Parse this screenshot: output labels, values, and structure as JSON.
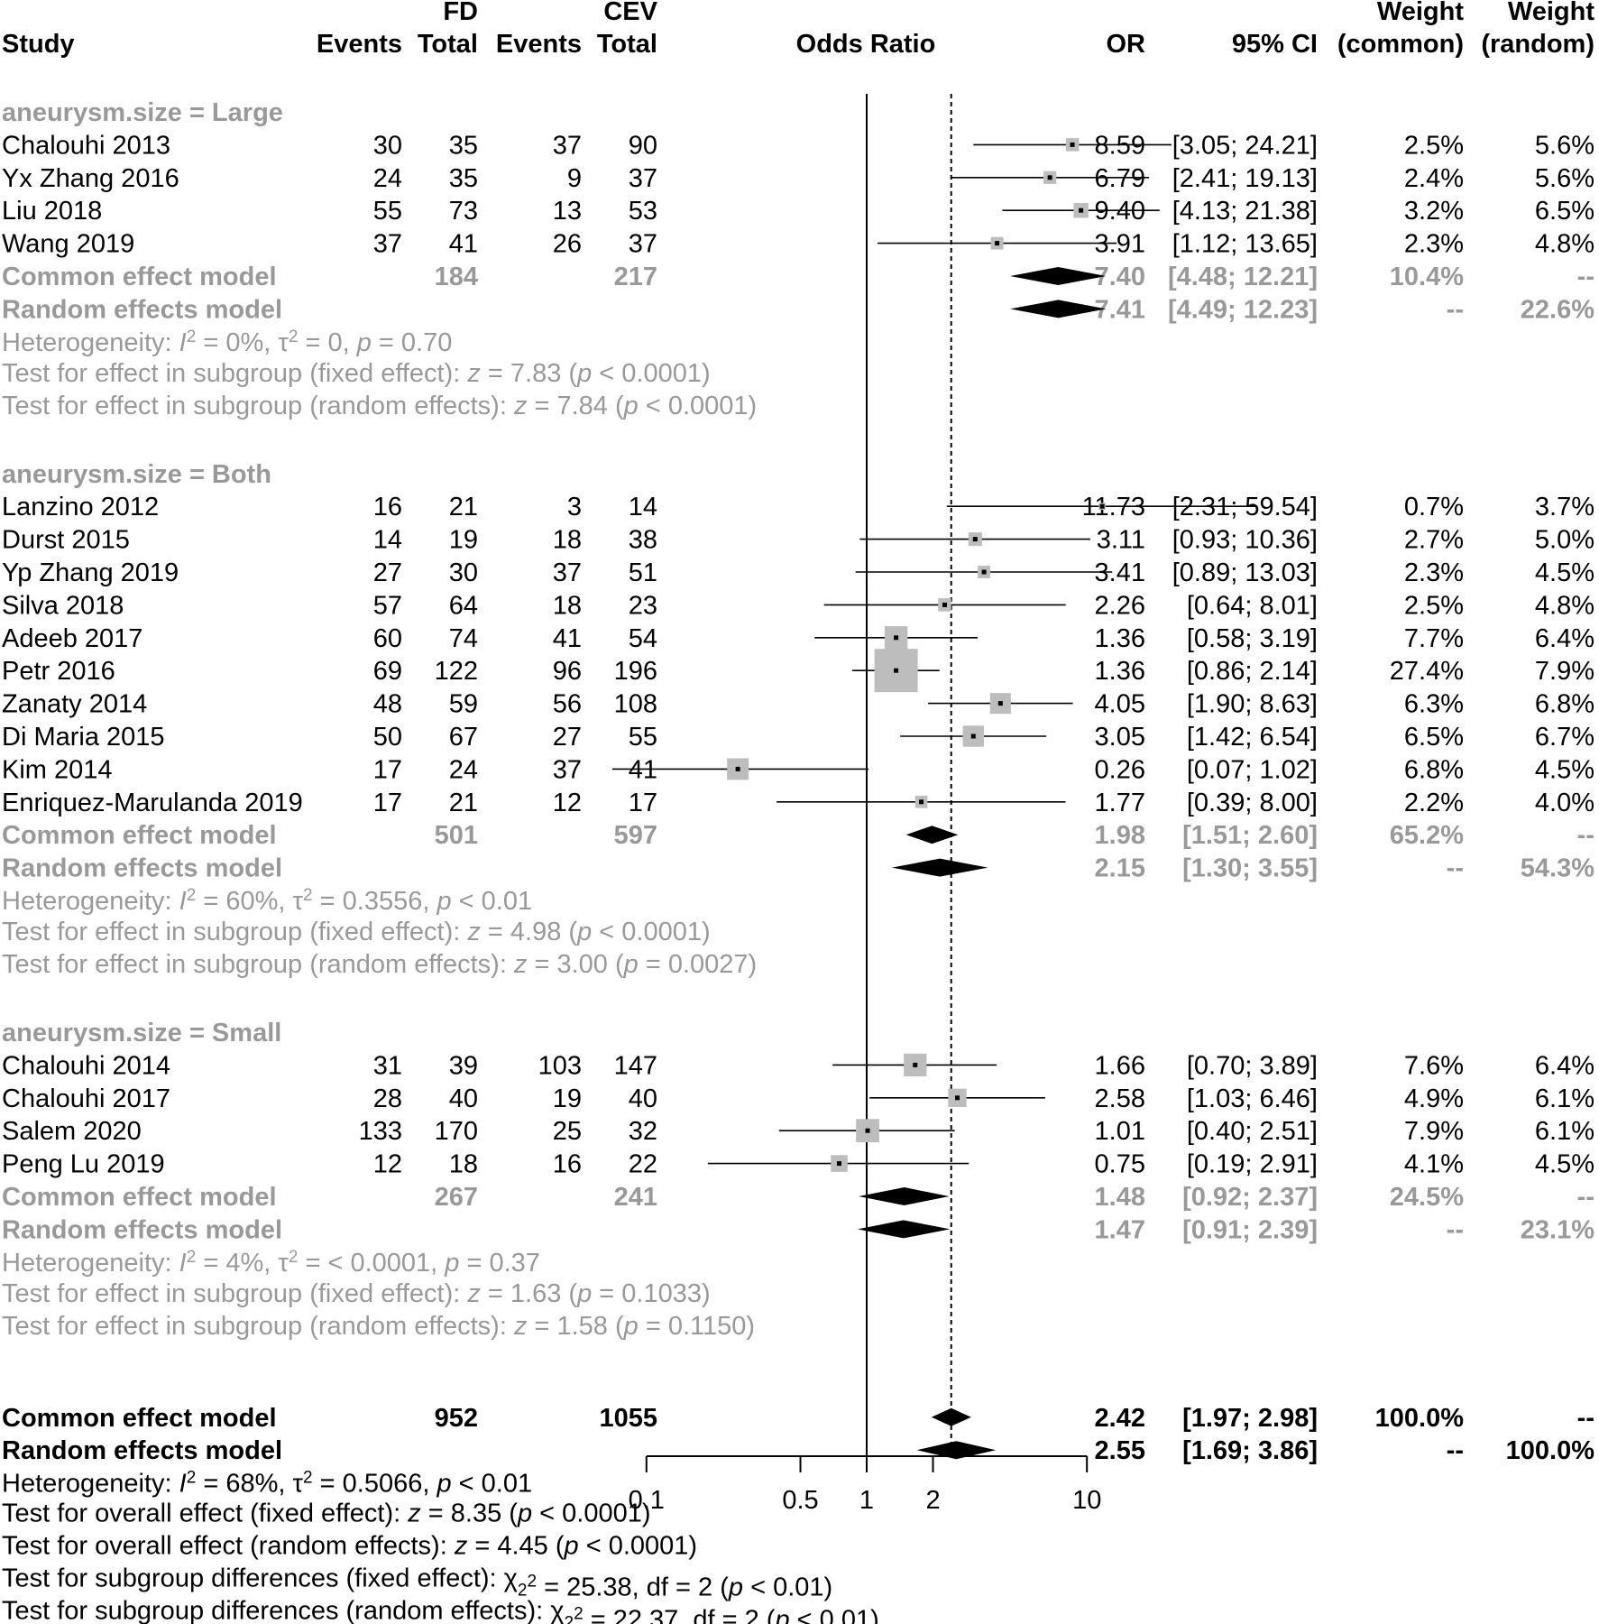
{
  "chart_data": {
    "type": "forest",
    "scale": "log",
    "effect_measure": "Odds Ratio",
    "null_value": 1,
    "x_ticks": [
      0.1,
      0.5,
      1,
      2,
      10
    ],
    "x_tick_labels": [
      "0.1",
      "0.5",
      "1",
      "2",
      "10"
    ],
    "overall_reference": 2.42,
    "header": {
      "group1": "FD",
      "group2": "CEV",
      "study": "Study",
      "events": "Events",
      "total": "Total",
      "plot": "Odds Ratio",
      "or": "OR",
      "ci": "95% CI",
      "weight": "Weight",
      "common": "(common)",
      "random": "(random)"
    },
    "subgroups": [
      {
        "label": "aneurysm.size = Large",
        "studies": [
          {
            "study": "Chalouhi 2013",
            "e1": "30",
            "n1": "35",
            "e2": "37",
            "n2": "90",
            "or": 8.59,
            "lo": 3.05,
            "hi": 24.21,
            "or_text": "8.59",
            "ci_text": "[3.05; 24.21]",
            "w_common": "2.5%",
            "w_random": "5.6%"
          },
          {
            "study": "Yx Zhang 2016",
            "e1": "24",
            "n1": "35",
            "e2": "9",
            "n2": "37",
            "or": 6.79,
            "lo": 2.41,
            "hi": 19.13,
            "or_text": "6.79",
            "ci_text": "[2.41; 19.13]",
            "w_common": "2.4%",
            "w_random": "5.6%"
          },
          {
            "study": "Liu 2018",
            "e1": "55",
            "n1": "73",
            "e2": "13",
            "n2": "53",
            "or": 9.4,
            "lo": 4.13,
            "hi": 21.38,
            "or_text": "9.40",
            "ci_text": "[4.13; 21.38]",
            "w_common": "3.2%",
            "w_random": "6.5%"
          },
          {
            "study": "Wang 2019",
            "e1": "37",
            "n1": "41",
            "e2": "26",
            "n2": "37",
            "or": 3.91,
            "lo": 1.12,
            "hi": 13.65,
            "or_text": "3.91",
            "ci_text": "[1.12; 13.65]",
            "w_common": "2.3%",
            "w_random": "4.8%"
          }
        ],
        "common": {
          "label": "Common effect model",
          "n1": "184",
          "n2": "217",
          "or": 7.4,
          "lo": 4.48,
          "hi": 12.21,
          "or_text": "7.40",
          "ci_text": "[4.48; 12.21]",
          "w_common": "10.4%",
          "w_random": "--"
        },
        "random": {
          "label": "Random effects model",
          "or": 7.41,
          "lo": 4.49,
          "hi": 12.23,
          "or_text": "7.41",
          "ci_text": "[4.49; 12.23]",
          "w_common": "--",
          "w_random": "22.6%"
        },
        "het": {
          "pre": "Heterogeneity: ",
          "i2": "0%",
          "tau2": "0",
          "p": "0.70"
        },
        "tests": [
          {
            "pre": "Test for effect in subgroup (fixed effect): ",
            "z": "7.83",
            "p": "p < 0.0001"
          },
          {
            "pre": "Test for effect in subgroup (random effects): ",
            "z": "7.84",
            "p": "p < 0.0001"
          }
        ]
      },
      {
        "label": "aneurysm.size = Both",
        "studies": [
          {
            "study": "Lanzino 2012",
            "e1": "16",
            "n1": "21",
            "e2": "3",
            "n2": "14",
            "or": 11.73,
            "lo": 2.31,
            "hi": 59.54,
            "or_text": "11.73",
            "ci_text": "[2.31; 59.54]",
            "w_common": "0.7%",
            "w_random": "3.7%"
          },
          {
            "study": "Durst 2015",
            "e1": "14",
            "n1": "19",
            "e2": "18",
            "n2": "38",
            "or": 3.11,
            "lo": 0.93,
            "hi": 10.36,
            "or_text": "3.11",
            "ci_text": "[0.93; 10.36]",
            "w_common": "2.7%",
            "w_random": "5.0%"
          },
          {
            "study": "Yp Zhang 2019",
            "e1": "27",
            "n1": "30",
            "e2": "37",
            "n2": "51",
            "or": 3.41,
            "lo": 0.89,
            "hi": 13.03,
            "or_text": "3.41",
            "ci_text": "[0.89; 13.03]",
            "w_common": "2.3%",
            "w_random": "4.5%"
          },
          {
            "study": "Silva 2018",
            "e1": "57",
            "n1": "64",
            "e2": "18",
            "n2": "23",
            "or": 2.26,
            "lo": 0.64,
            "hi": 8.01,
            "or_text": "2.26",
            "ci_text": "[0.64;  8.01]",
            "w_common": "2.5%",
            "w_random": "4.8%"
          },
          {
            "study": "Adeeb 2017",
            "e1": "60",
            "n1": "74",
            "e2": "41",
            "n2": "54",
            "or": 1.36,
            "lo": 0.58,
            "hi": 3.19,
            "or_text": "1.36",
            "ci_text": "[0.58;  3.19]",
            "w_common": "7.7%",
            "w_random": "6.4%"
          },
          {
            "study": "Petr 2016",
            "e1": "69",
            "n1": "122",
            "e2": "96",
            "n2": "196",
            "or": 1.36,
            "lo": 0.86,
            "hi": 2.14,
            "or_text": "1.36",
            "ci_text": "[0.86;  2.14]",
            "w_common": "27.4%",
            "w_random": "7.9%"
          },
          {
            "study": "Zanaty 2014",
            "e1": "48",
            "n1": "59",
            "e2": "56",
            "n2": "108",
            "or": 4.05,
            "lo": 1.9,
            "hi": 8.63,
            "or_text": "4.05",
            "ci_text": "[1.90;  8.63]",
            "w_common": "6.3%",
            "w_random": "6.8%"
          },
          {
            "study": "Di Maria 2015",
            "e1": "50",
            "n1": "67",
            "e2": "27",
            "n2": "55",
            "or": 3.05,
            "lo": 1.42,
            "hi": 6.54,
            "or_text": "3.05",
            "ci_text": "[1.42;  6.54]",
            "w_common": "6.5%",
            "w_random": "6.7%"
          },
          {
            "study": "Kim 2014",
            "e1": "17",
            "n1": "24",
            "e2": "37",
            "n2": "41",
            "or": 0.26,
            "lo": 0.07,
            "hi": 1.02,
            "or_text": "0.26",
            "ci_text": "[0.07;  1.02]",
            "w_common": "6.8%",
            "w_random": "4.5%"
          },
          {
            "study": "Enriquez-Marulanda 2019",
            "e1": "17",
            "n1": "21",
            "e2": "12",
            "n2": "17",
            "or": 1.77,
            "lo": 0.39,
            "hi": 8.0,
            "or_text": "1.77",
            "ci_text": "[0.39;  8.00]",
            "w_common": "2.2%",
            "w_random": "4.0%"
          }
        ],
        "common": {
          "label": "Common effect model",
          "n1": "501",
          "n2": "597",
          "or": 1.98,
          "lo": 1.51,
          "hi": 2.6,
          "or_text": "1.98",
          "ci_text": "[1.51;  2.60]",
          "w_common": "65.2%",
          "w_random": "--"
        },
        "random": {
          "label": "Random effects model",
          "or": 2.15,
          "lo": 1.3,
          "hi": 3.55,
          "or_text": "2.15",
          "ci_text": "[1.30;  3.55]",
          "w_common": "--",
          "w_random": "54.3%"
        },
        "het": {
          "pre": "Heterogeneity: ",
          "i2": "60%",
          "tau2": "0.3556",
          "p": "< 0.01"
        },
        "tests": [
          {
            "pre": "Test for effect in subgroup (fixed effect): ",
            "z": "4.98",
            "p": "p < 0.0001"
          },
          {
            "pre": "Test for effect in subgroup (random effects): ",
            "z": "3.00",
            "p": "p = 0.0027"
          }
        ]
      },
      {
        "label": "aneurysm.size = Small",
        "studies": [
          {
            "study": "Chalouhi 2014",
            "e1": "31",
            "n1": "39",
            "e2": "103",
            "n2": "147",
            "or": 1.66,
            "lo": 0.7,
            "hi": 3.89,
            "or_text": "1.66",
            "ci_text": "[0.70;  3.89]",
            "w_common": "7.6%",
            "w_random": "6.4%"
          },
          {
            "study": "Chalouhi 2017",
            "e1": "28",
            "n1": "40",
            "e2": "19",
            "n2": "40",
            "or": 2.58,
            "lo": 1.03,
            "hi": 6.46,
            "or_text": "2.58",
            "ci_text": "[1.03;  6.46]",
            "w_common": "4.9%",
            "w_random": "6.1%"
          },
          {
            "study": "Salem 2020",
            "e1": "133",
            "n1": "170",
            "e2": "25",
            "n2": "32",
            "or": 1.01,
            "lo": 0.4,
            "hi": 2.51,
            "or_text": "1.01",
            "ci_text": "[0.40;  2.51]",
            "w_common": "7.9%",
            "w_random": "6.1%"
          },
          {
            "study": "Peng Lu 2019",
            "e1": "12",
            "n1": "18",
            "e2": "16",
            "n2": "22",
            "or": 0.75,
            "lo": 0.19,
            "hi": 2.91,
            "or_text": "0.75",
            "ci_text": "[0.19;  2.91]",
            "w_common": "4.1%",
            "w_random": "4.5%"
          }
        ],
        "common": {
          "label": "Common effect model",
          "n1": "267",
          "n2": "241",
          "or": 1.48,
          "lo": 0.92,
          "hi": 2.37,
          "or_text": "1.48",
          "ci_text": "[0.92;  2.37]",
          "w_common": "24.5%",
          "w_random": "--"
        },
        "random": {
          "label": "Random effects model",
          "or": 1.47,
          "lo": 0.91,
          "hi": 2.39,
          "or_text": "1.47",
          "ci_text": "[0.91;  2.39]",
          "w_common": "--",
          "w_random": "23.1%"
        },
        "het": {
          "pre": "Heterogeneity: ",
          "i2": "4%",
          "tau2": "< 0.0001",
          "p": "0.37"
        },
        "tests": [
          {
            "pre": "Test for effect in subgroup (fixed effect): ",
            "z": "1.63",
            "p": "p = 0.1033"
          },
          {
            "pre": "Test for effect in subgroup (random effects): ",
            "z": "1.58",
            "p": "p = 0.1150"
          }
        ]
      }
    ],
    "overall": {
      "common": {
        "label": "Common effect model",
        "n1": "952",
        "n2": "1055",
        "or": 2.42,
        "lo": 1.97,
        "hi": 2.98,
        "or_text": "2.42",
        "ci_text": "[1.97;  2.98]",
        "w_common": "100.0%",
        "w_random": "--"
      },
      "random": {
        "label": "Random effects model",
        "or": 2.55,
        "lo": 1.69,
        "hi": 3.86,
        "or_text": "2.55",
        "ci_text": "[1.69;  3.86]",
        "w_common": "--",
        "w_random": "100.0%"
      },
      "het": {
        "pre": "Heterogeneity: ",
        "i2": "68%",
        "tau2": "0.5066",
        "p": "< 0.01"
      },
      "tests": [
        {
          "pre": "Test for overall effect (fixed effect): ",
          "z": "8.35",
          "p": "p < 0.0001"
        },
        {
          "pre": "Test for overall effect (random effects): ",
          "z": "4.45",
          "p": "p < 0.0001"
        }
      ],
      "subgroup_tests": [
        {
          "pre": "Test for subgroup differences (fixed effect): ",
          "chi2": "25.38",
          "df": "2",
          "p": "p < 0.01"
        },
        {
          "pre": "Test for subgroup differences (random effects): ",
          "chi2": "22.37",
          "df": "2",
          "p": "p < 0.01"
        }
      ]
    },
    "colors": {
      "text": "#000000",
      "subgroup_text": "#999999",
      "box_fill": "#bdbdbd",
      "diamond": "#000000"
    }
  }
}
